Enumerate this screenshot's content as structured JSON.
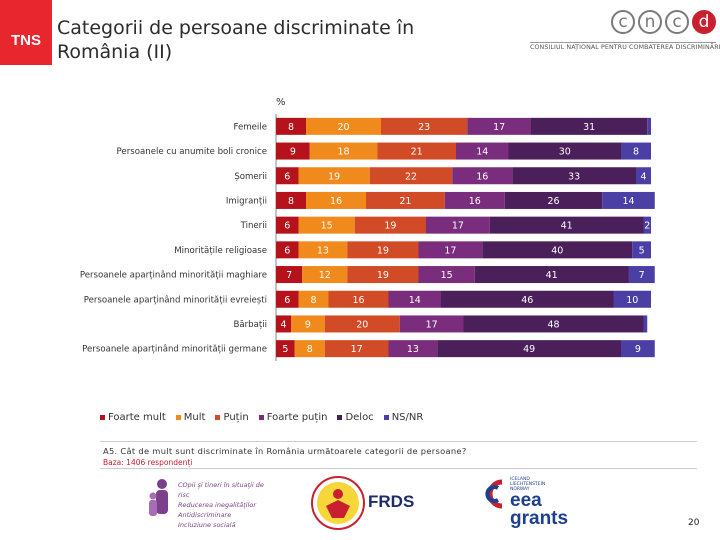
{
  "header": {
    "tns_logo": "TNS",
    "title": "Categorii de persoane discriminate în România (II)",
    "cncd_letters": [
      "c",
      "n",
      "c",
      "d"
    ],
    "cncd_full": "CONSILIUL NAȚIONAL PENTRU COMBATEREA DISCRIMINĂRII"
  },
  "chart_data": {
    "type": "bar",
    "orientation": "horizontal",
    "stacked": true,
    "unit_label": "%",
    "categories": [
      "Femeile",
      "Persoanele cu anumite boli cronice",
      "Șomerii",
      "Imigranții",
      "Tinerii",
      "Minoritățile religioase",
      "Persoanele aparținând minorității maghiare",
      "Persoanele aparținând minorității evreiești",
      "Bărbații",
      "Persoanele aparținând minorității germane"
    ],
    "series": [
      {
        "name": "Foarte mult",
        "color": "#b5121b",
        "values": [
          8,
          9,
          6,
          8,
          6,
          6,
          7,
          6,
          4,
          5
        ]
      },
      {
        "name": "Mult",
        "color": "#f08a1c",
        "values": [
          20,
          18,
          19,
          16,
          15,
          13,
          12,
          8,
          9,
          8
        ]
      },
      {
        "name": "Puțin",
        "color": "#d14b26",
        "values": [
          23,
          21,
          22,
          21,
          19,
          19,
          19,
          16,
          20,
          17
        ]
      },
      {
        "name": "Foarte puțin",
        "color": "#7a2d7d",
        "values": [
          17,
          14,
          16,
          16,
          17,
          17,
          15,
          14,
          17,
          13
        ]
      },
      {
        "name": "Deloc",
        "color": "#4a1f5a",
        "values": [
          31,
          30,
          33,
          26,
          41,
          40,
          41,
          46,
          48,
          49
        ]
      },
      {
        "name": "NS/NR",
        "color": "#4b3fa6",
        "values": [
          1,
          8,
          4,
          14,
          2,
          5,
          7,
          10,
          1,
          9
        ]
      }
    ],
    "label_threshold": 2,
    "xlim": [
      0,
      100
    ],
    "legend_position": "bottom"
  },
  "footer": {
    "question": "A5. Cât de mult sunt discriminate în România următoarele categorii de persoane?",
    "base": "Baza: 1406 respondenți",
    "page_number": "20",
    "logo1_lines": [
      "COpii şi tineri în situaţii de risc",
      "Reducerea inegalităţilor",
      "Antidiscriminare",
      "Incluziune socială"
    ],
    "logo2_text": "FRDS",
    "logo3_lines": [
      "ICELAND",
      "LIECHTENSTEIN",
      "NORWAY"
    ],
    "logo3_main": [
      "eea",
      "grants"
    ]
  }
}
